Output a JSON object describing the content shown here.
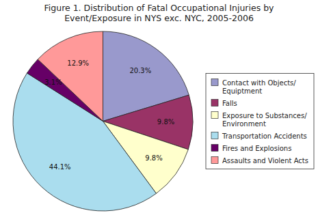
{
  "chart_data": {
    "type": "pie",
    "title": "Figure 1. Distribution of Fatal Occupational Injuries by\nEvent/Exposure in NYS exc. NYC, 2005-2006",
    "categories": [
      "Contact with Objects/\nEquiptment",
      "Falls",
      "Exposure to Substances/\nEnvironment",
      "Transportation Accidents",
      "Fires and Explosions",
      "Assaults and Violent Acts"
    ],
    "values": [
      20.3,
      9.8,
      9.8,
      44.1,
      3.1,
      12.9
    ],
    "value_labels": [
      "20.3%",
      "9.8%",
      "9.8%",
      "44.1%",
      "3.1%",
      "12.9%"
    ],
    "colors": [
      "#9999cc",
      "#993366",
      "#ffffcc",
      "#aaddee",
      "#660066",
      "#ff9999"
    ],
    "data_labels": true,
    "legend": "right"
  }
}
